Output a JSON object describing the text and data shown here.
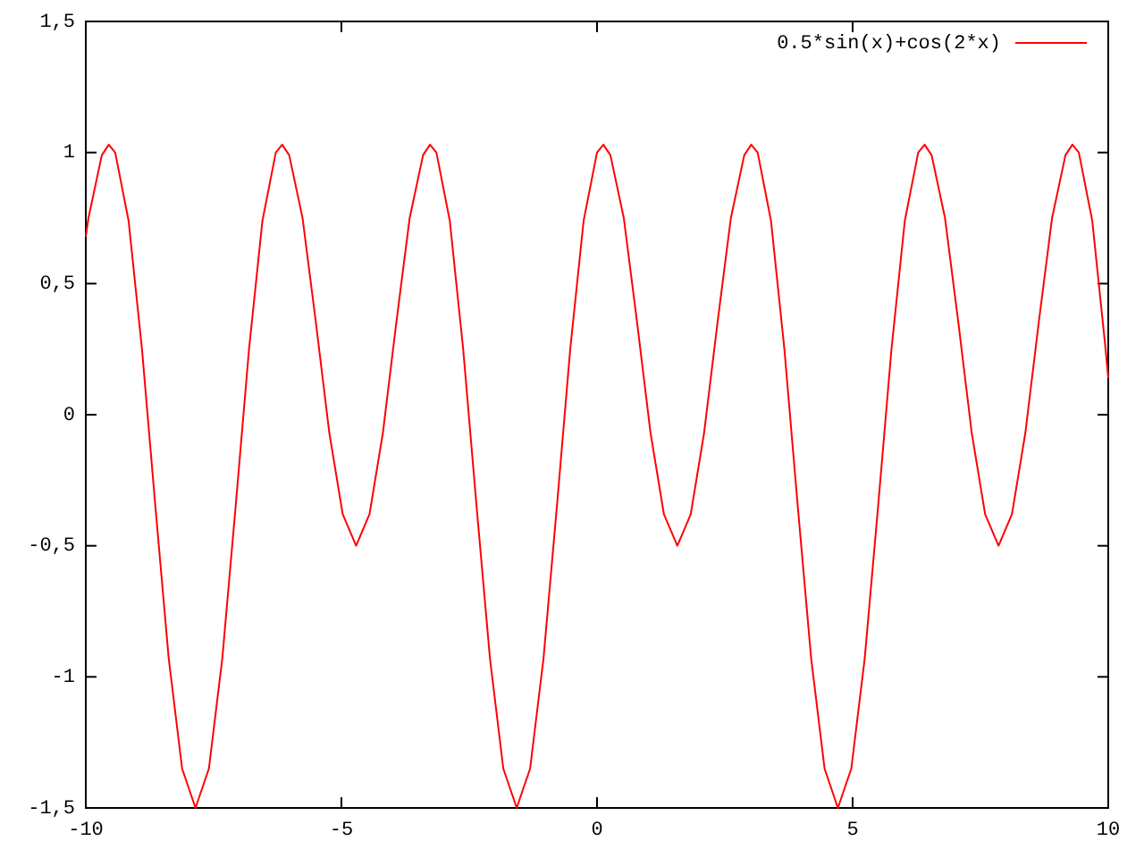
{
  "chart_data": {
    "type": "line",
    "legend": "top right",
    "marker": "none",
    "line_style": "solid",
    "xlim": [
      -10,
      10
    ],
    "xticks": [
      -10,
      -5,
      0,
      5,
      10
    ],
    "ylim": [
      -1.5,
      1.5
    ],
    "yticks": [
      {
        "value": -1.5,
        "label": "-1,5"
      },
      -1,
      {
        "value": -0.5,
        "label": "-0,5"
      },
      0,
      {
        "value": 0.5,
        "label": "0,5"
      },
      1,
      {
        "value": 1.5,
        "label": "1,5"
      }
    ],
    "series": [
      {
        "name": "0.5*sin(x)+cos(2*x)",
        "color": "#ff0000",
        "x": [
          -10,
          -9.948,
          -9.687,
          -9.55,
          -9.425,
          -9.163,
          -8.901,
          -8.639,
          -8.378,
          -8.116,
          -7.854,
          -7.592,
          -7.33,
          -7.069,
          -6.807,
          -6.545,
          -6.283,
          -6.158,
          -6.021,
          -5.76,
          -5.498,
          -5.236,
          -4.974,
          -4.712,
          -4.451,
          -4.189,
          -3.927,
          -3.665,
          -3.403,
          -3.267,
          -3.142,
          -2.88,
          -2.618,
          -2.356,
          -2.094,
          -1.833,
          -1.571,
          -1.309,
          -1.047,
          -0.785,
          -0.524,
          -0.262,
          0,
          0.125,
          0.262,
          0.524,
          0.785,
          1.047,
          1.309,
          1.571,
          1.833,
          2.094,
          2.356,
          2.618,
          2.88,
          3.016,
          3.142,
          3.403,
          3.665,
          3.927,
          4.189,
          4.451,
          4.712,
          4.974,
          5.236,
          5.498,
          5.76,
          6.021,
          6.283,
          6.408,
          6.545,
          6.807,
          7.069,
          7.33,
          7.592,
          7.854,
          8.116,
          8.378,
          8.639,
          8.901,
          9.163,
          9.299,
          9.425,
          9.687,
          9.948,
          10
        ],
        "values": [
          0.68,
          0.75,
          0.99,
          1.03,
          1,
          0.74,
          0.25,
          -0.35,
          -0.93,
          -1.35,
          -1.5,
          -1.35,
          -0.93,
          -0.35,
          0.25,
          0.74,
          1,
          1.03,
          0.99,
          0.75,
          0.35,
          -0.07,
          -0.38,
          -0.5,
          -0.38,
          -0.07,
          0.35,
          0.75,
          0.99,
          1.03,
          1,
          0.74,
          0.25,
          -0.35,
          -0.93,
          -1.35,
          -1.5,
          -1.35,
          -0.93,
          -0.35,
          0.25,
          0.74,
          1,
          1.03,
          0.99,
          0.75,
          0.35,
          -0.07,
          -0.38,
          -0.5,
          -0.38,
          -0.07,
          0.35,
          0.75,
          0.99,
          1.03,
          1,
          0.74,
          0.25,
          -0.35,
          -0.93,
          -1.35,
          -1.5,
          -1.35,
          -0.93,
          -0.35,
          0.25,
          0.74,
          1,
          1.03,
          0.99,
          0.75,
          0.35,
          -0.07,
          -0.38,
          -0.5,
          -0.38,
          -0.07,
          0.35,
          0.75,
          0.99,
          1.03,
          1,
          0.74,
          0.25,
          0.14
        ]
      }
    ]
  }
}
